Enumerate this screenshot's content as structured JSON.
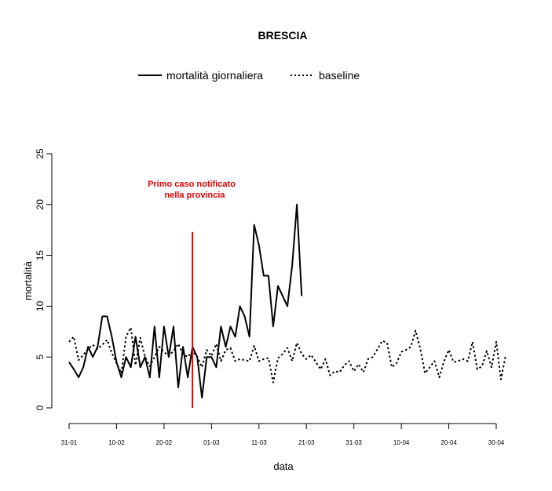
{
  "chart_data": {
    "type": "line",
    "title": "BRESCIA",
    "xlabel": "data",
    "ylabel": "mortalità",
    "ylim": [
      0,
      25
    ],
    "y_ticks": [
      0,
      5,
      10,
      15,
      20,
      25
    ],
    "x_start": "31-01",
    "x_ticks": [
      {
        "day": 0,
        "label": "31-01"
      },
      {
        "day": 10,
        "label": "10-02"
      },
      {
        "day": 20,
        "label": "20-02"
      },
      {
        "day": 30,
        "label": "01-03"
      },
      {
        "day": 40,
        "label": "11-03"
      },
      {
        "day": 50,
        "label": "21-03"
      },
      {
        "day": 60,
        "label": "31-03"
      },
      {
        "day": 70,
        "label": "10-04"
      },
      {
        "day": 80,
        "label": "20-04"
      },
      {
        "day": 90,
        "label": "30-04"
      }
    ],
    "xlim": [
      0,
      90
    ],
    "legend": {
      "placement": "top-center",
      "entries": [
        {
          "label": "mortalità giornaliera",
          "style": "solid"
        },
        {
          "label": "baseline",
          "style": "dotted"
        }
      ]
    },
    "annotation": {
      "line1": "Primo caso notificato",
      "line2": "nella provincia",
      "day": 26,
      "color": "#e00000"
    },
    "series": [
      {
        "name": "mortalità giornaliera",
        "style": "solid",
        "color": "#000000",
        "values": [
          4.5,
          3.8,
          3,
          4,
          6,
          5,
          6,
          9,
          9,
          7,
          4.5,
          3,
          5,
          4,
          7,
          4,
          5,
          3,
          8,
          3,
          8,
          5,
          8,
          2,
          6,
          3,
          6,
          5,
          1,
          5,
          5,
          4,
          8,
          6,
          8,
          7,
          10,
          9,
          7,
          18,
          16,
          13,
          13,
          8,
          12,
          11,
          10,
          14,
          20,
          11
        ]
      },
      {
        "name": "baseline",
        "style": "dotted",
        "color": "#000000",
        "values": [
          6.5,
          7,
          4.7,
          5.2,
          5.8,
          6.2,
          5.8,
          6.2,
          6.7,
          5.4,
          4.4,
          3.4,
          7,
          7.9,
          4.2,
          6.9,
          5,
          4.1,
          5,
          6,
          5.5,
          5.1,
          5.6,
          6.3,
          5.3,
          5,
          5.6,
          5,
          4,
          5.7,
          5.1,
          6.3,
          4.6,
          5.7,
          5.9,
          4.6,
          4.8,
          4.7,
          4.6,
          6.1,
          4.6,
          4.8,
          4.9,
          2.5,
          4.9,
          5.3,
          5.9,
          4.6,
          6.4,
          5.3,
          4.8,
          5.2,
          4.5,
          3.8,
          4.8,
          3.2,
          3.6,
          3.5,
          4.2,
          4.6,
          3.6,
          4.3,
          3.5,
          4.8,
          5,
          5.8,
          6.6,
          6.4,
          4,
          4.4,
          5.5,
          5.7,
          6,
          7.6,
          5.8,
          3.4,
          4,
          4.6,
          3,
          4.6,
          5.7,
          4.5,
          4.6,
          4.8,
          4.6,
          6.5,
          3.8,
          4.1,
          5.6,
          4,
          6.5,
          2.8,
          5.2
        ]
      }
    ]
  }
}
